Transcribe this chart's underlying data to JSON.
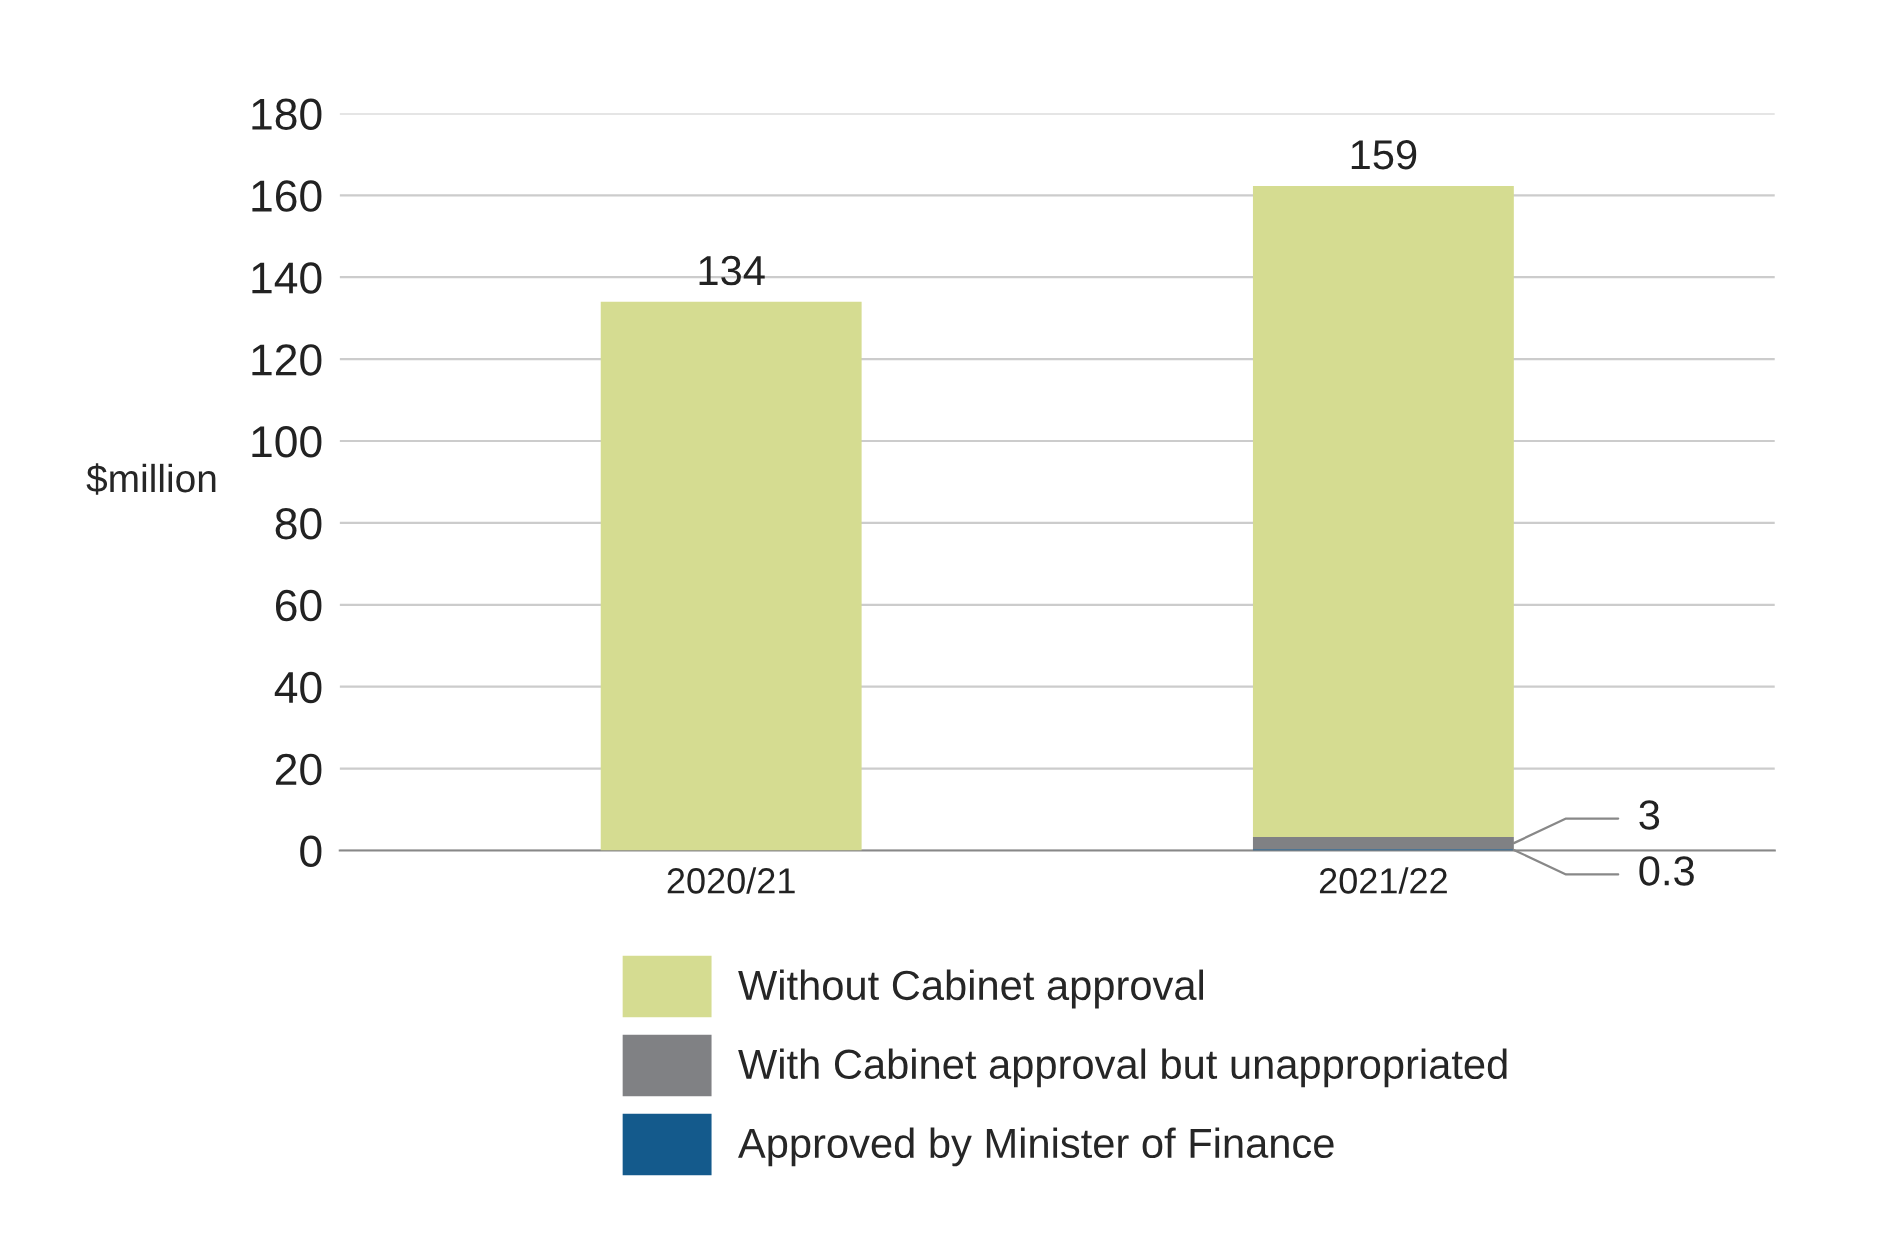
{
  "chart_data": {
    "type": "bar",
    "stacked": true,
    "ylabel": "$million",
    "categories": [
      "2020/21",
      "2021/22"
    ],
    "series": [
      {
        "name": "Approved by Minister of Finance",
        "color": "#145a8c",
        "values": [
          0,
          0.3
        ],
        "value_labels": [
          null,
          "0.3"
        ]
      },
      {
        "name": "With Cabinet approval but unappropriated",
        "color": "#808184",
        "values": [
          0,
          3
        ],
        "value_labels": [
          null,
          "3"
        ]
      },
      {
        "name": "Without Cabinet approval",
        "color": "#d5dc91",
        "values": [
          134,
          159
        ],
        "value_labels": [
          "134",
          "159"
        ]
      }
    ],
    "ylim": [
      0,
      180
    ],
    "yticks": [
      0,
      20,
      40,
      60,
      80,
      100,
      120,
      140,
      160,
      180
    ],
    "grid": "y",
    "legend": "bottom"
  }
}
